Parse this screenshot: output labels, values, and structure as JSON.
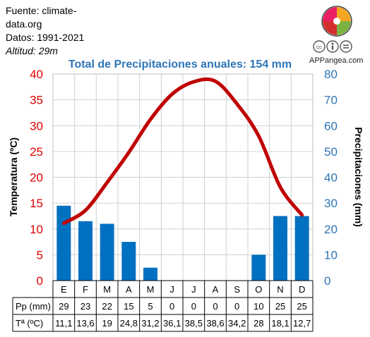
{
  "meta": {
    "source_line1": "Fuente: climate-",
    "source_line2": "data.org",
    "period": "Datos: 1991-2021",
    "altitude": "Altitud: 29m"
  },
  "branding": {
    "site": "APPangea.com",
    "license_text": "cc i ="
  },
  "chart_data": {
    "type": "bar+line",
    "title": "Total de Precipitaciones anuales: 154 mm",
    "categories": [
      "E",
      "F",
      "M",
      "A",
      "M",
      "J",
      "J",
      "A",
      "S",
      "O",
      "N",
      "D"
    ],
    "y_left": {
      "label": "Temperatura (ºC)",
      "range": [
        0,
        40
      ],
      "ticks": [
        0,
        5,
        10,
        15,
        20,
        25,
        30,
        35,
        40
      ],
      "color": "#e00000"
    },
    "y_right": {
      "label": "Precipitaciones (mm)",
      "range": [
        0,
        80
      ],
      "ticks": [
        0,
        10,
        20,
        30,
        40,
        50,
        60,
        70,
        80
      ],
      "color": "#2e75b6"
    },
    "series": [
      {
        "name": "Pp (mm)",
        "type": "bar",
        "axis": "right",
        "color": "#0070c0",
        "values": [
          29,
          23,
          22,
          15,
          5,
          0,
          0,
          0,
          0,
          10,
          25,
          25
        ]
      },
      {
        "name": "Tª (ºC)",
        "type": "line",
        "axis": "left",
        "color": "#c00000",
        "values": [
          11.1,
          13.6,
          19,
          24.8,
          31.2,
          36.1,
          38.5,
          38.6,
          34.2,
          28,
          18.1,
          12.7
        ]
      }
    ],
    "grid": true,
    "table": {
      "rows": [
        {
          "label": "Pp (mm)",
          "values": [
            "29",
            "23",
            "22",
            "15",
            "5",
            "0",
            "0",
            "0",
            "0",
            "10",
            "25",
            "25"
          ]
        },
        {
          "label": "Tª (ºC)",
          "values": [
            "11,1",
            "13,6",
            "19",
            "24,8",
            "31,2",
            "36,1",
            "38,5",
            "38,6",
            "34,2",
            "28",
            "18,1",
            "12,7"
          ]
        }
      ]
    }
  }
}
